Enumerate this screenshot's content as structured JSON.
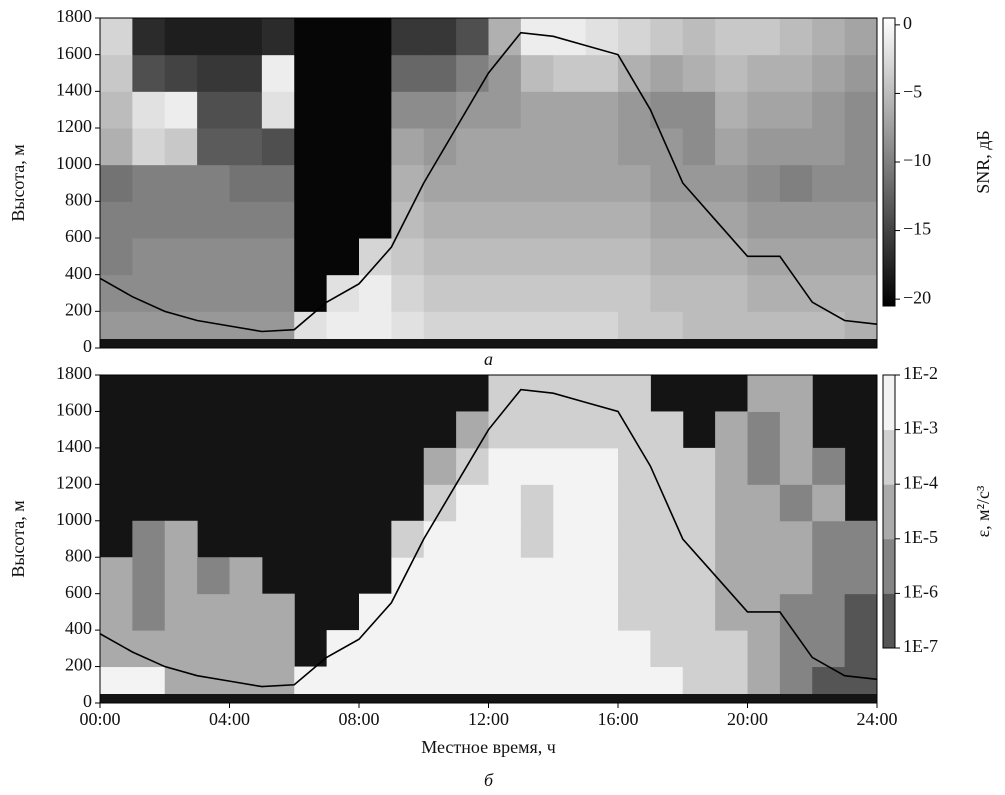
{
  "chart_data": [
    {
      "type": "heatmap",
      "panel_label": "а",
      "ylabel": "Высота, м",
      "ylim": [
        0,
        1800
      ],
      "yticks": [
        0,
        200,
        400,
        600,
        800,
        1000,
        1200,
        1400,
        1600,
        1800
      ],
      "xlim": [
        0,
        24
      ],
      "x_bins": [
        0,
        1,
        2,
        3,
        4,
        5,
        6,
        7,
        8,
        9,
        10,
        11,
        12,
        13,
        14,
        15,
        16,
        17,
        18,
        19,
        20,
        21,
        22,
        23,
        24
      ],
      "y_bins": [
        0,
        200,
        400,
        600,
        800,
        1000,
        1200,
        1400,
        1600,
        1800
      ],
      "z": [
        [
          -8,
          -8,
          -8,
          -8,
          -8,
          -8,
          -2,
          -1,
          -1,
          -2,
          -3,
          -3,
          -3,
          -3,
          -3,
          -3,
          -4,
          -4,
          -5,
          -5,
          -5,
          -5,
          -5,
          -6
        ],
        [
          -9,
          -9,
          -9,
          -9,
          -9,
          -9,
          -20,
          -2,
          -1,
          -3,
          -4,
          -4,
          -4,
          -4,
          -4,
          -4,
          -4,
          -5,
          -5,
          -5,
          -6,
          -6,
          -6,
          -6
        ],
        [
          -10,
          -9,
          -9,
          -9,
          -9,
          -9,
          -20,
          -20,
          -3,
          -4,
          -5,
          -5,
          -5,
          -5,
          -5,
          -5,
          -5,
          -6,
          -6,
          -6,
          -7,
          -7,
          -7,
          -7
        ],
        [
          -10,
          -10,
          -10,
          -10,
          -10,
          -10,
          -20,
          -20,
          -20,
          -5,
          -6,
          -6,
          -6,
          -6,
          -6,
          -6,
          -6,
          -7,
          -7,
          -7,
          -8,
          -8,
          -8,
          -8
        ],
        [
          -11,
          -10,
          -10,
          -10,
          -11,
          -11,
          -20,
          -20,
          -20,
          -6,
          -7,
          -7,
          -7,
          -7,
          -7,
          -7,
          -7,
          -8,
          -8,
          -8,
          -9,
          -10,
          -9,
          -9
        ],
        [
          -6,
          -3,
          -4,
          -13,
          -13,
          -14,
          -20,
          -20,
          -20,
          -7,
          -8,
          -7,
          -7,
          -7,
          -7,
          -7,
          -8,
          -8,
          -9,
          -7,
          -8,
          -8,
          -8,
          -9
        ],
        [
          -5,
          -2,
          -1,
          -14,
          -14,
          -2,
          -20,
          -20,
          -20,
          -9,
          -9,
          -8,
          -8,
          -7,
          -7,
          -7,
          -8,
          -9,
          -9,
          -6,
          -7,
          -7,
          -8,
          -9
        ],
        [
          -4,
          -14,
          -15,
          -16,
          -16,
          -1,
          -20,
          -20,
          -20,
          -12,
          -12,
          -10,
          -8,
          -5,
          -4,
          -4,
          -6,
          -7,
          -6,
          -5,
          -6,
          -6,
          -7,
          -8
        ],
        [
          -3,
          -17,
          -18,
          -18,
          -18,
          -17,
          -20,
          -20,
          -20,
          -16,
          -16,
          -14,
          -6,
          -1,
          -1,
          -2,
          -3,
          -4,
          -5,
          -4,
          -4,
          -5,
          -6,
          -7
        ]
      ],
      "colormap": "gray",
      "clim": [
        -20.5,
        0.5
      ],
      "clabel": "SNR, дБ",
      "cticks": [
        {
          "value": 0,
          "label": "0"
        },
        {
          "value": -5,
          "label": "−5"
        },
        {
          "value": -10,
          "label": "−10"
        },
        {
          "value": -15,
          "label": "−15"
        },
        {
          "value": -20,
          "label": "−20"
        }
      ],
      "series": [
        {
          "color": "#000000",
          "x": [
            0,
            1,
            2,
            3,
            4,
            5,
            6,
            7,
            8,
            9,
            10,
            11,
            12,
            13,
            14,
            15,
            16,
            17,
            18,
            19,
            20,
            21,
            22,
            23,
            24
          ],
          "values": [
            380,
            280,
            200,
            150,
            120,
            90,
            100,
            250,
            350,
            550,
            900,
            1200,
            1500,
            1720,
            1700,
            1650,
            1600,
            1300,
            900,
            700,
            500,
            500,
            250,
            150,
            130
          ]
        }
      ]
    },
    {
      "type": "heatmap",
      "panel_label": "б",
      "ylabel": "Высота, м",
      "xlabel": "Местное время, ч",
      "ylim": [
        0,
        1800
      ],
      "yticks": [
        0,
        200,
        400,
        600,
        800,
        1000,
        1200,
        1400,
        1600,
        1800
      ],
      "xlim": [
        0,
        24
      ],
      "xticks": [
        {
          "value": 0,
          "label": "00:00"
        },
        {
          "value": 4,
          "label": "04:00"
        },
        {
          "value": 8,
          "label": "08:00"
        },
        {
          "value": 12,
          "label": "12:00"
        },
        {
          "value": 16,
          "label": "16:00"
        },
        {
          "value": 20,
          "label": "20:00"
        },
        {
          "value": 24,
          "label": "24:00"
        }
      ],
      "x_bins": [
        0,
        1,
        2,
        3,
        4,
        5,
        6,
        7,
        8,
        9,
        10,
        11,
        12,
        13,
        14,
        15,
        16,
        17,
        18,
        19,
        20,
        21,
        22,
        23,
        24
      ],
      "y_bins": [
        0,
        200,
        400,
        600,
        800,
        1000,
        1200,
        1400,
        1600,
        1800
      ],
      "z": [
        [
          0.003,
          0.003,
          3e-05,
          3e-05,
          3e-05,
          3e-05,
          0.003,
          0.003,
          0.003,
          0.003,
          0.003,
          0.003,
          0.003,
          0.003,
          0.003,
          0.003,
          0.003,
          0.003,
          0.0003,
          0.0003,
          3e-05,
          3e-06,
          3e-07,
          3e-07
        ],
        [
          3e-05,
          3e-05,
          3e-05,
          3e-05,
          3e-05,
          3e-05,
          null,
          0.003,
          0.003,
          0.003,
          0.003,
          0.003,
          0.003,
          0.003,
          0.003,
          0.003,
          0.003,
          0.0003,
          0.0003,
          0.0003,
          3e-05,
          3e-06,
          3e-06,
          3e-07
        ],
        [
          3e-05,
          3e-06,
          3e-05,
          3e-05,
          3e-05,
          3e-05,
          null,
          null,
          0.003,
          0.003,
          0.003,
          0.003,
          0.003,
          0.003,
          0.003,
          0.003,
          0.0003,
          0.0003,
          0.0003,
          3e-05,
          3e-05,
          3e-06,
          3e-06,
          3e-07
        ],
        [
          3e-05,
          3e-06,
          3e-05,
          3e-06,
          3e-05,
          null,
          null,
          null,
          null,
          0.003,
          0.003,
          0.003,
          0.003,
          0.003,
          0.003,
          0.003,
          0.0003,
          0.0003,
          0.0003,
          3e-05,
          3e-05,
          3e-05,
          3e-06,
          3e-06
        ],
        [
          null,
          3e-06,
          3e-05,
          null,
          null,
          null,
          null,
          null,
          null,
          0.0003,
          0.003,
          0.003,
          0.003,
          0.0003,
          0.003,
          0.003,
          0.0003,
          0.0003,
          0.0003,
          3e-05,
          3e-05,
          3e-05,
          3e-06,
          3e-06
        ],
        [
          null,
          null,
          null,
          null,
          null,
          null,
          null,
          null,
          null,
          null,
          0.0003,
          0.003,
          0.003,
          0.0003,
          0.003,
          0.003,
          0.0003,
          0.0003,
          0.0003,
          3e-05,
          3e-05,
          3e-06,
          3e-05,
          null
        ],
        [
          null,
          null,
          null,
          null,
          null,
          null,
          null,
          null,
          null,
          null,
          3e-05,
          0.0003,
          0.003,
          0.003,
          0.003,
          0.003,
          0.0003,
          0.0003,
          0.0003,
          3e-05,
          3e-06,
          3e-05,
          3e-06,
          null
        ],
        [
          null,
          null,
          null,
          null,
          null,
          null,
          null,
          null,
          null,
          null,
          null,
          3e-05,
          0.0003,
          0.0003,
          0.0003,
          0.0003,
          0.0003,
          0.0003,
          null,
          3e-05,
          3e-06,
          3e-05,
          null,
          null
        ],
        [
          null,
          null,
          null,
          null,
          null,
          null,
          null,
          null,
          null,
          null,
          null,
          null,
          0.0003,
          0.0003,
          0.0003,
          0.0003,
          0.0003,
          null,
          null,
          null,
          3e-05,
          3e-05,
          null,
          null
        ]
      ],
      "log_scale_color": true,
      "clim": [
        1e-07,
        0.01
      ],
      "clabel": "ε, м²/с³",
      "level_colors": [
        "#555555",
        "#848484",
        "#aaaaaa",
        "#d0d0d0",
        "#f3f3f3"
      ],
      "cticks": [
        {
          "value": 0.01,
          "label": "1E-2"
        },
        {
          "value": 0.001,
          "label": "1E-3"
        },
        {
          "value": 0.0001,
          "label": "1E-4"
        },
        {
          "value": 1e-05,
          "label": "1E-5"
        },
        {
          "value": 1e-06,
          "label": "1E-6"
        },
        {
          "value": 1e-07,
          "label": "1E-7"
        }
      ],
      "series": [
        {
          "color": "#000000",
          "x": [
            0,
            1,
            2,
            3,
            4,
            5,
            6,
            7,
            8,
            9,
            10,
            11,
            12,
            13,
            14,
            15,
            16,
            17,
            18,
            19,
            20,
            21,
            22,
            23,
            24
          ],
          "values": [
            380,
            280,
            200,
            150,
            120,
            90,
            100,
            250,
            350,
            550,
            900,
            1200,
            1500,
            1720,
            1700,
            1650,
            1600,
            1300,
            900,
            700,
            500,
            500,
            250,
            150,
            130
          ]
        }
      ]
    }
  ]
}
